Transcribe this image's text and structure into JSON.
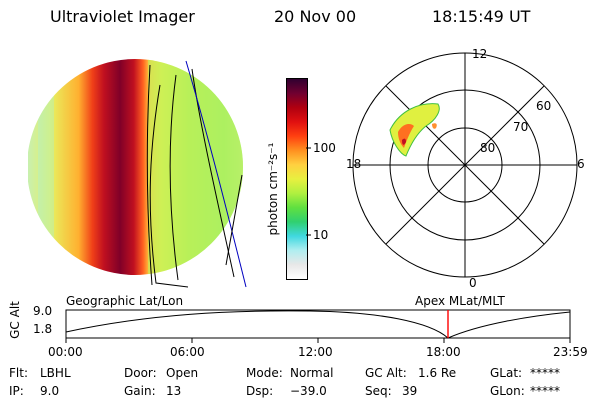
{
  "header": {
    "title": "Ultraviolet Imager",
    "date": "20 Nov 00",
    "time": "18:15:49 UT"
  },
  "colorbar": {
    "unit_label": "photon cm⁻²s⁻¹",
    "ticks": [
      "100",
      "10"
    ],
    "stops": [
      "#ffffff",
      "#e8e8e8",
      "#b0eef0",
      "#40d8e0",
      "#30d070",
      "#60e040",
      "#b0f040",
      "#e8f040",
      "#ffd040",
      "#ff9020",
      "#ff4010",
      "#e01010",
      "#b00010",
      "#700030",
      "#300030"
    ]
  },
  "polar_plot": {
    "mlt_labels": [
      "12",
      "18",
      "6",
      "0"
    ],
    "lat_labels": [
      "60",
      "70",
      "80"
    ]
  },
  "timeline": {
    "y_axis_label": "GC Alt",
    "y_ticks": [
      "9.0",
      "1.8"
    ],
    "left_caption": "Geographic Lat/Lon",
    "right_caption": "Apex MLat/MLT",
    "x_ticks": [
      "00:00",
      "06:00",
      "12:00",
      "18:00",
      "23:59"
    ],
    "marker_color": "#ff0000"
  },
  "info": {
    "flt_label": "Flt:",
    "flt_value": "LBHL",
    "ip_label": "IP:",
    "ip_value": "9.0",
    "door_label": "Door:",
    "door_value": "Open",
    "gain_label": "Gain:",
    "gain_value": "13",
    "mode_label": "Mode:",
    "mode_value": "Normal",
    "dsp_label": "Dsp:",
    "dsp_value": "−39.0",
    "gcalt_label": "GC Alt:",
    "gcalt_value": "1.6 Re",
    "seq_label": "Seq:",
    "seq_value": "39",
    "glat_label": "GLat:",
    "glat_value": "*****",
    "glon_label": "GLon:",
    "glon_value": "*****"
  }
}
